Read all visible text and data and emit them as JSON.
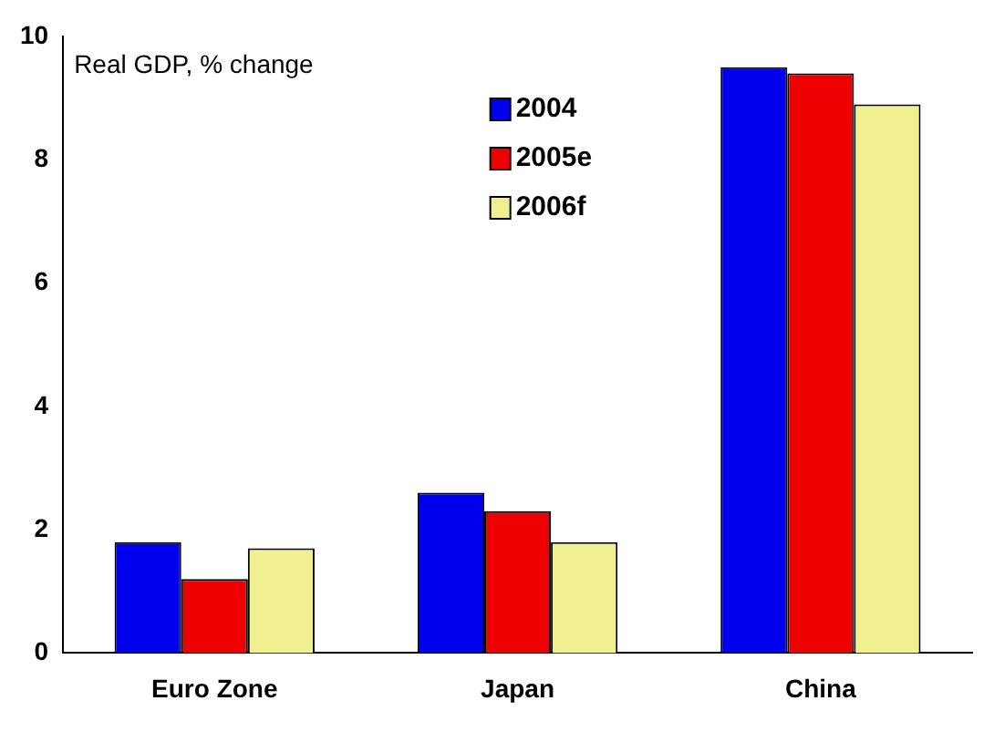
{
  "chart_data": {
    "type": "bar",
    "annotations": [
      "Real GDP, % change"
    ],
    "categories": [
      "Euro Zone",
      "Japan",
      "China"
    ],
    "series": [
      {
        "name": "2004",
        "color": "#0000ee",
        "values": [
          1.8,
          2.6,
          9.5
        ]
      },
      {
        "name": "2005e",
        "color": "#ee0000",
        "values": [
          1.2,
          2.3,
          9.4
        ]
      },
      {
        "name": "2006f",
        "color": "#f0f090",
        "values": [
          1.7,
          1.8,
          8.9
        ]
      }
    ],
    "ylim": [
      0,
      10
    ],
    "yticks": [
      0,
      2,
      4,
      6,
      8,
      10
    ],
    "grid": false,
    "legend": "top"
  }
}
